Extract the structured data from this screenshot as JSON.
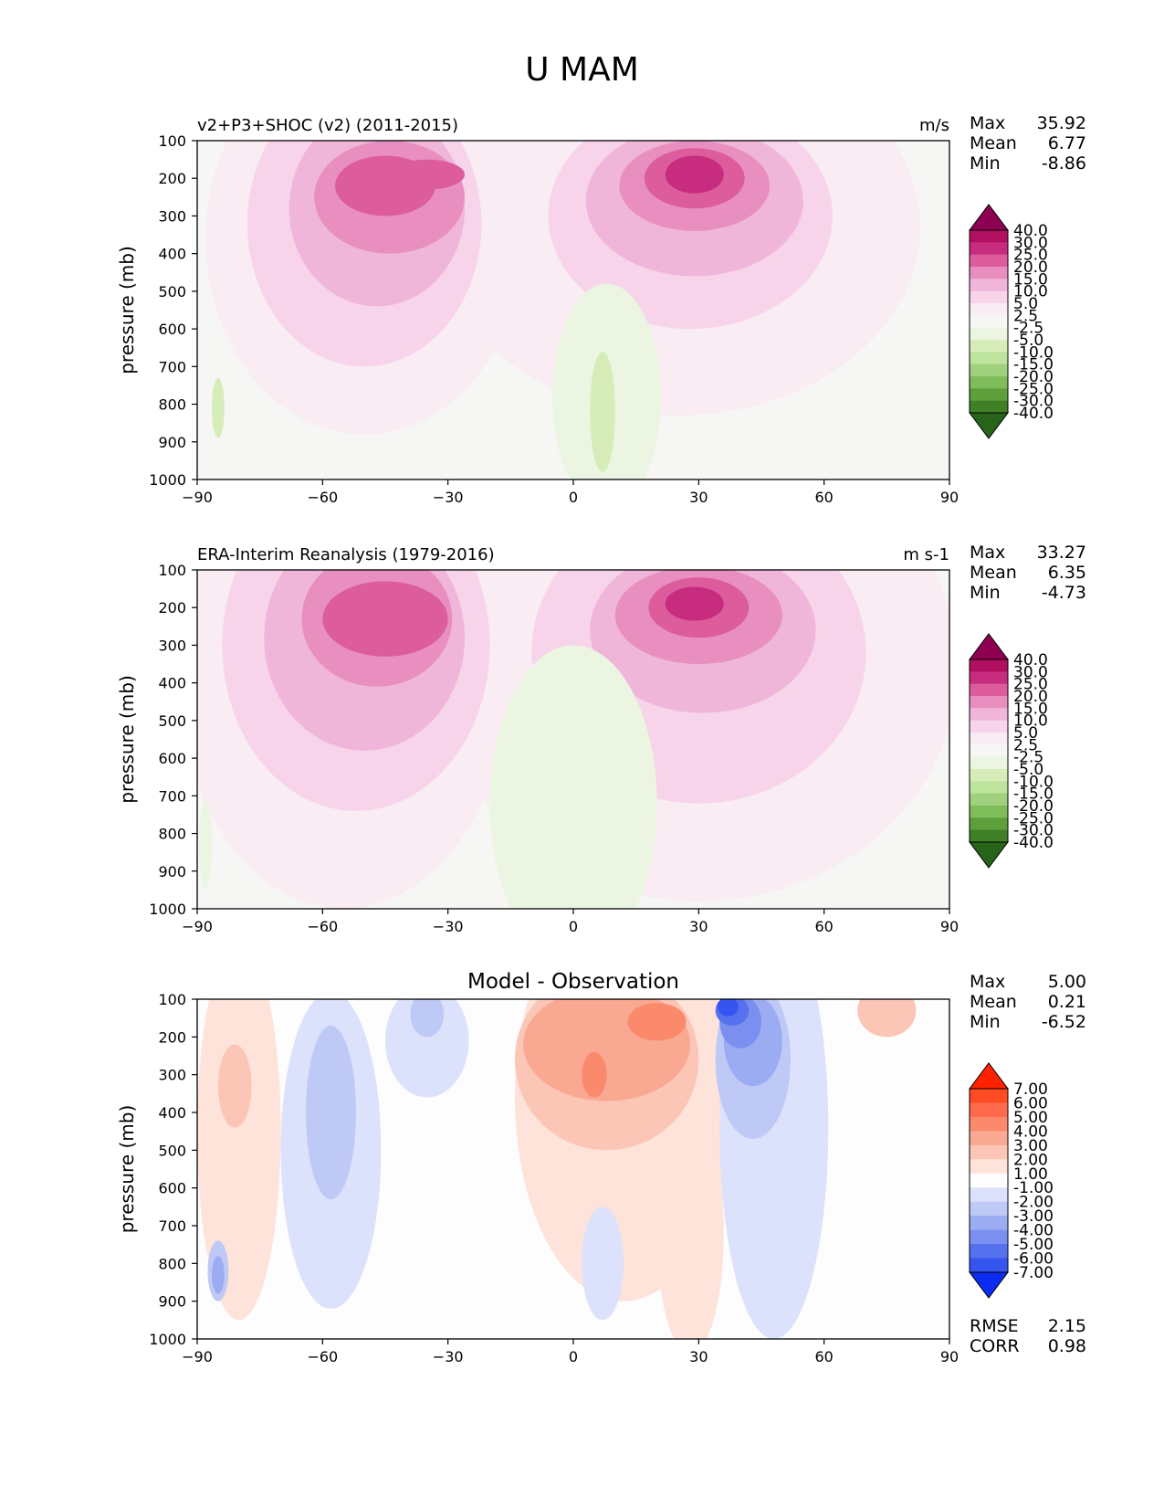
{
  "figure": {
    "title": "U MAM"
  },
  "chart_data": [
    {
      "type": "contour",
      "title_left": "v2+P3+SHOC (v2) (2011-2015)",
      "title_center": "",
      "units": "m/s",
      "xlabel": "",
      "ylabel": "pressure (mb)",
      "xlim": [
        -90,
        90
      ],
      "ylim": [
        1000,
        100
      ],
      "xticks": [
        "−90",
        "−60",
        "−30",
        "0",
        "30",
        "60",
        "90"
      ],
      "yticks": [
        "100",
        "200",
        "300",
        "400",
        "500",
        "600",
        "700",
        "800",
        "900",
        "1000"
      ],
      "stats": {
        "labels": [
          "Max",
          "Mean",
          "Min"
        ],
        "values": [
          "35.92",
          "6.77",
          "-8.86"
        ]
      },
      "colorbar": {
        "levels": [
          "40.0",
          "30.0",
          "25.0",
          "20.0",
          "15.0",
          "10.0",
          "5.0",
          "2.5",
          "-2.5",
          "-5.0",
          "-10.0",
          "-15.0",
          "-20.0",
          "-25.0",
          "-30.0",
          "-40.0"
        ],
        "colors": [
          "#8e0152",
          "#b0105f",
          "#c72c7e",
          "#dc5c9c",
          "#e88fc0",
          "#f0b6d9",
          "#f7d4e9",
          "#f9ecf3",
          "#f6f6f4",
          "#ebf5e1",
          "#d6ecb9",
          "#bde39c",
          "#a0d17e",
          "#7fbc5a",
          "#5e9f3c",
          "#3f7f25",
          "#276419"
        ]
      },
      "blobs": [
        {
          "level": 1,
          "x": -50,
          "y": 360,
          "rx": 38,
          "ry": 520
        },
        {
          "level": 1,
          "x": 25,
          "y": 330,
          "rx": 58,
          "ry": 500
        },
        {
          "level": 2,
          "x": -50,
          "y": 320,
          "rx": 28,
          "ry": 380
        },
        {
          "level": 2,
          "x": 28,
          "y": 300,
          "rx": 34,
          "ry": 300
        },
        {
          "level": 3,
          "x": -47,
          "y": 280,
          "rx": 21,
          "ry": 260
        },
        {
          "level": 3,
          "x": 29,
          "y": 260,
          "rx": 26,
          "ry": 200
        },
        {
          "level": 4,
          "x": -44,
          "y": 250,
          "rx": 18,
          "ry": 150
        },
        {
          "level": 4,
          "x": 29,
          "y": 220,
          "rx": 18,
          "ry": 120
        },
        {
          "level": 5,
          "x": -45,
          "y": 220,
          "rx": 12,
          "ry": 80
        },
        {
          "level": 5,
          "x": -35,
          "y": 190,
          "rx": 9,
          "ry": 40
        },
        {
          "level": 5,
          "x": 29,
          "y": 200,
          "rx": 12,
          "ry": 80
        },
        {
          "level": 6,
          "x": 29,
          "y": 190,
          "rx": 7,
          "ry": 50
        },
        {
          "level": -1,
          "x": 8,
          "y": 780,
          "rx": 13,
          "ry": 300
        },
        {
          "level": -2,
          "x": 7,
          "y": 820,
          "rx": 3,
          "ry": 160
        },
        {
          "level": -2,
          "x": -85,
          "y": 810,
          "rx": 1.5,
          "ry": 80
        }
      ]
    },
    {
      "type": "contour",
      "title_left": "ERA-Interim Reanalysis (1979-2016)",
      "title_center": "",
      "units": "m s-1",
      "xlabel": "",
      "ylabel": "pressure (mb)",
      "xlim": [
        -90,
        90
      ],
      "ylim": [
        1000,
        100
      ],
      "xticks": [
        "−90",
        "−60",
        "−30",
        "0",
        "30",
        "60",
        "90"
      ],
      "yticks": [
        "100",
        "200",
        "300",
        "400",
        "500",
        "600",
        "700",
        "800",
        "900",
        "1000"
      ],
      "stats": {
        "labels": [
          "Max",
          "Mean",
          "Min"
        ],
        "values": [
          "33.27",
          "6.35",
          "-4.73"
        ]
      },
      "colorbar": {
        "levels": [
          "40.0",
          "30.0",
          "25.0",
          "20.0",
          "15.0",
          "10.0",
          "5.0",
          "2.5",
          "-2.5",
          "-5.0",
          "-10.0",
          "-15.0",
          "-20.0",
          "-25.0",
          "-30.0",
          "-40.0"
        ],
        "colors": [
          "#8e0152",
          "#b0105f",
          "#c72c7e",
          "#dc5c9c",
          "#e88fc0",
          "#f0b6d9",
          "#f7d4e9",
          "#f9ecf3",
          "#f6f6f4",
          "#ebf5e1",
          "#d6ecb9",
          "#bde39c",
          "#a0d17e",
          "#7fbc5a",
          "#5e9f3c",
          "#3f7f25",
          "#276419"
        ]
      },
      "blobs": [
        {
          "level": 1,
          "x": -55,
          "y": 360,
          "rx": 40,
          "ry": 640
        },
        {
          "level": 1,
          "x": 30,
          "y": 360,
          "rx": 62,
          "ry": 620
        },
        {
          "level": 2,
          "x": -52,
          "y": 300,
          "rx": 32,
          "ry": 440
        },
        {
          "level": 2,
          "x": 30,
          "y": 320,
          "rx": 40,
          "ry": 400
        },
        {
          "level": 3,
          "x": -50,
          "y": 280,
          "rx": 24,
          "ry": 300
        },
        {
          "level": 3,
          "x": 31,
          "y": 260,
          "rx": 27,
          "ry": 220
        },
        {
          "level": 4,
          "x": -47,
          "y": 230,
          "rx": 18,
          "ry": 180
        },
        {
          "level": 4,
          "x": 30,
          "y": 220,
          "rx": 20,
          "ry": 130
        },
        {
          "level": 5,
          "x": -45,
          "y": 230,
          "rx": 15,
          "ry": 100
        },
        {
          "level": 5,
          "x": 30,
          "y": 200,
          "rx": 12,
          "ry": 80
        },
        {
          "level": 6,
          "x": 29,
          "y": 190,
          "rx": 7,
          "ry": 45
        },
        {
          "level": -1,
          "x": 0,
          "y": 720,
          "rx": 20,
          "ry": 420
        },
        {
          "level": -1,
          "x": -88,
          "y": 830,
          "rx": 1.5,
          "ry": 120
        }
      ]
    },
    {
      "type": "contour",
      "title_left": "",
      "title_center": "Model - Observation",
      "units": "",
      "xlabel": "",
      "ylabel": "pressure (mb)",
      "xlim": [
        -90,
        90
      ],
      "ylim": [
        1000,
        100
      ],
      "xticks": [
        "−90",
        "−60",
        "−30",
        "0",
        "30",
        "60",
        "90"
      ],
      "yticks": [
        "100",
        "200",
        "300",
        "400",
        "500",
        "600",
        "700",
        "800",
        "900",
        "1000"
      ],
      "stats": {
        "labels": [
          "Max",
          "Mean",
          "Min"
        ],
        "values": [
          "5.00",
          "0.21",
          "-6.52"
        ]
      },
      "extra_stats": {
        "labels": [
          "RMSE",
          "CORR"
        ],
        "values": [
          "2.15",
          "0.98"
        ]
      },
      "colorbar": {
        "levels": [
          "7.00",
          "6.00",
          "5.00",
          "4.00",
          "3.00",
          "2.00",
          "1.00",
          "-1.00",
          "-2.00",
          "-3.00",
          "-4.00",
          "-5.00",
          "-6.00",
          "-7.00"
        ],
        "colors": [
          "#ff2200",
          "#ff4b24",
          "#fe6a4b",
          "#fb8a6d",
          "#f9a892",
          "#fbc6b6",
          "#fde3da",
          "#fdfdfd",
          "#dce2fb",
          "#bfc9f6",
          "#9cacf2",
          "#7a8ff0",
          "#5571ee",
          "#3554f0",
          "#0d2cf3"
        ]
      },
      "blobs": [
        {
          "level": 1,
          "x": 12,
          "y": 360,
          "rx": 26,
          "ry": 540
        },
        {
          "level": 1,
          "x": -80,
          "y": 450,
          "rx": 10,
          "ry": 500
        },
        {
          "level": 1,
          "x": 28,
          "y": 720,
          "rx": 8,
          "ry": 320
        },
        {
          "level": 2,
          "x": 8,
          "y": 260,
          "rx": 22,
          "ry": 240
        },
        {
          "level": 2,
          "x": -81,
          "y": 330,
          "rx": 4,
          "ry": 110
        },
        {
          "level": 2,
          "x": 75,
          "y": 130,
          "rx": 7,
          "ry": 70
        },
        {
          "level": 3,
          "x": 8,
          "y": 220,
          "rx": 20,
          "ry": 150
        },
        {
          "level": 4,
          "x": 5,
          "y": 300,
          "rx": 3,
          "ry": 60
        },
        {
          "level": 4,
          "x": 20,
          "y": 160,
          "rx": 7,
          "ry": 50
        },
        {
          "level": -1,
          "x": -58,
          "y": 500,
          "rx": 12,
          "ry": 420
        },
        {
          "level": -1,
          "x": -35,
          "y": 210,
          "rx": 10,
          "ry": 150
        },
        {
          "level": -1,
          "x": 48,
          "y": 440,
          "rx": 13,
          "ry": 560
        },
        {
          "level": -1,
          "x": 7,
          "y": 800,
          "rx": 5,
          "ry": 150
        },
        {
          "level": -2,
          "x": -58,
          "y": 400,
          "rx": 6,
          "ry": 230
        },
        {
          "level": -2,
          "x": -35,
          "y": 140,
          "rx": 4,
          "ry": 60
        },
        {
          "level": -2,
          "x": 43,
          "y": 260,
          "rx": 9,
          "ry": 210
        },
        {
          "level": -3,
          "x": 43,
          "y": 210,
          "rx": 7,
          "ry": 120
        },
        {
          "level": -4,
          "x": 40,
          "y": 160,
          "rx": 5,
          "ry": 70
        },
        {
          "level": -5,
          "x": 38,
          "y": 130,
          "rx": 4,
          "ry": 40
        },
        {
          "level": -6,
          "x": 37,
          "y": 120,
          "rx": 2.5,
          "ry": 25
        },
        {
          "level": -2,
          "x": -85,
          "y": 820,
          "rx": 2.5,
          "ry": 80
        },
        {
          "level": -3,
          "x": -85,
          "y": 830,
          "rx": 1.5,
          "ry": 50
        }
      ]
    }
  ]
}
